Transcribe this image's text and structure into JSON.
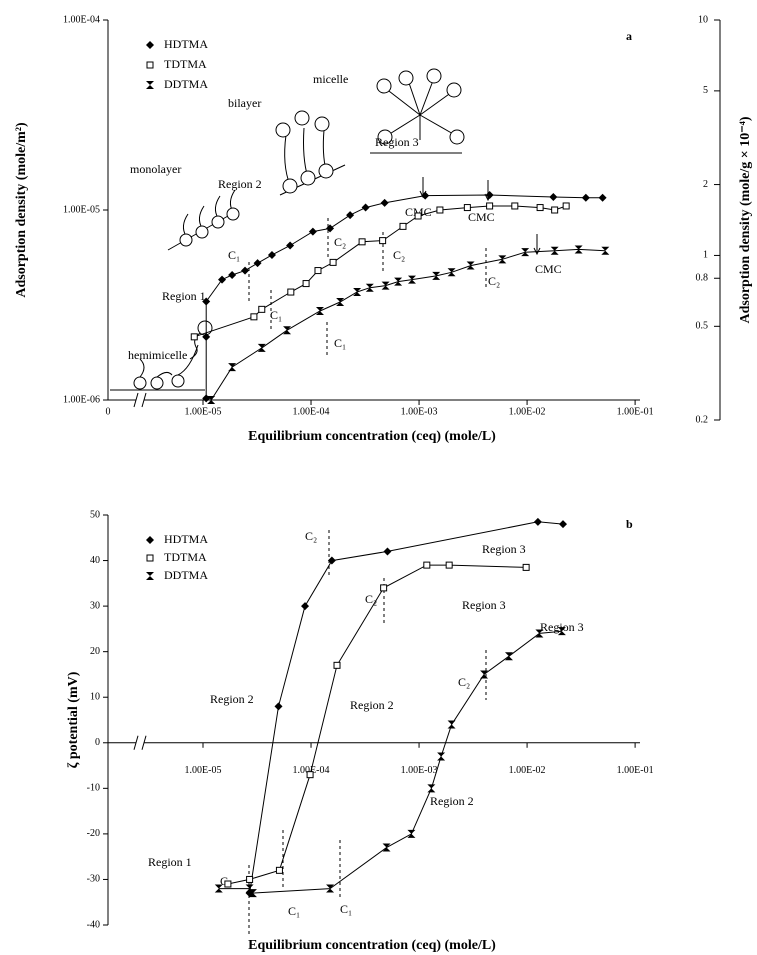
{
  "chart_data": [
    {
      "type": "scatter",
      "panel_label": "a",
      "x_label": "Equilibrium concentration (ceq) (mole/L)",
      "y_label": "Adsorption density (mole/m²)",
      "y2_label": "Adsorption density (mole/g × 10⁻⁴)",
      "x_break_label": "0",
      "log_x": true,
      "log_y": true,
      "log_y2": true,
      "xlim": [
        1.32e-06,
        0.111
      ],
      "xticks": [
        {
          "value": 1e-05,
          "label": "1.00E-05"
        },
        {
          "value": 0.0001,
          "label": "1.00E-04"
        },
        {
          "value": 0.001,
          "label": "1.00E-03"
        },
        {
          "value": 0.01,
          "label": "1.00E-02"
        },
        {
          "value": 0.1,
          "label": "1.00E-01"
        }
      ],
      "ylim": [
        1e-06,
        0.0001
      ],
      "yticks": [
        {
          "value": 1e-06,
          "label": "1.00E-06"
        },
        {
          "value": 1e-05,
          "label": "1.00E-05"
        },
        {
          "value": 0.0001,
          "label": "1.00E-04"
        }
      ],
      "y2lim": [
        0.2,
        10
      ],
      "y2ticks": [
        10,
        5,
        2,
        1,
        0.8,
        0.5,
        0.2
      ],
      "annotations": [
        "monolayer",
        "bilayer",
        "micelle",
        "Region 3",
        "Region 2",
        "Region 1",
        "hemimicelle",
        "C₁",
        "C₂",
        "C₁",
        "C₂",
        "C₁",
        "C₂",
        "CMC",
        "CMC",
        "CMC"
      ],
      "series": [
        {
          "name": "HDTMA",
          "marker": "diamond",
          "color": "#000000",
          "x": [
            1.07e-05,
            1.07e-05,
            1.07e-05,
            1.5e-05,
            1.86e-05,
            2.45e-05,
            3.2e-05,
            4.35e-05,
            6.4e-05,
            0.000104,
            0.00015,
            0.00023,
            0.00032,
            0.00048,
            0.00114,
            0.0045,
            0.0175,
            0.035,
            0.05
          ],
          "values": [
            1.02e-06,
            2.15e-06,
            3.3e-06,
            4.3e-06,
            4.55e-06,
            4.8e-06,
            5.25e-06,
            5.8e-06,
            6.5e-06,
            7.7e-06,
            8e-06,
            9.4e-06,
            1.03e-05,
            1.09e-05,
            1.19e-05,
            1.2e-05,
            1.17e-05,
            1.16e-05,
            1.16e-05
          ]
        },
        {
          "name": "TDTMA",
          "marker": "square",
          "color": "#000000",
          "x": [
            8.3e-06,
            2.96e-05,
            3.5e-05,
            6.5e-05,
            9e-05,
            0.000116,
            0.00016,
            0.000297,
            0.00046,
            0.00071,
            0.00098,
            0.00156,
            0.0028,
            0.0045,
            0.0077,
            0.0132,
            0.018,
            0.023
          ],
          "values": [
            2.15e-06,
            2.74e-06,
            3e-06,
            3.7e-06,
            4.1e-06,
            4.8e-06,
            5.3e-06,
            6.8e-06,
            6.9e-06,
            8.2e-06,
            9.3e-06,
            1e-05,
            1.03e-05,
            1.05e-05,
            1.05e-05,
            1.03e-05,
            1e-05,
            1.05e-05
          ]
        },
        {
          "name": "DDTMA",
          "marker": "bowtie",
          "color": "#000000",
          "x": [
            1.19e-05,
            1.86e-05,
            3.5e-05,
            6e-05,
            0.000121,
            0.000186,
            0.000267,
            0.00035,
            0.00049,
            0.00064,
            0.00086,
            0.00144,
            0.002,
            0.003,
            0.0059,
            0.0096,
            0.018,
            0.03,
            0.053
          ],
          "values": [
            1e-06,
            1.49e-06,
            1.88e-06,
            2.33e-06,
            2.94e-06,
            3.28e-06,
            3.7e-06,
            3.9e-06,
            4e-06,
            4.2e-06,
            4.3e-06,
            4.5e-06,
            4.7e-06,
            5.1e-06,
            5.5e-06,
            6e-06,
            6.1e-06,
            6.2e-06,
            6.1e-06
          ]
        }
      ]
    },
    {
      "type": "scatter",
      "panel_label": "b",
      "x_label": "Equilibrium concentration (ceq) (mole/L)",
      "y_label": "ζ potential (mV)",
      "log_x": true,
      "log_y": false,
      "xlim": [
        1.32e-06,
        0.111
      ],
      "xticks": [
        {
          "value": 1e-05,
          "label": "1.00E-05"
        },
        {
          "value": 0.0001,
          "label": "1.00E-04"
        },
        {
          "value": 0.001,
          "label": "1.00E-03"
        },
        {
          "value": 0.01,
          "label": "1.00E-02"
        },
        {
          "value": 0.1,
          "label": "1.00E-01"
        }
      ],
      "ylim": [
        -40,
        50
      ],
      "yticks": [
        -40,
        -30,
        -20,
        -10,
        0,
        10,
        20,
        30,
        40,
        50
      ],
      "annotations": [
        "C₂",
        "Region 3",
        "C₂",
        "Region 3",
        "Region 3",
        "Region 2",
        "Region 2",
        "C₂",
        "Region 1",
        "C₁",
        "C₁",
        "C₁",
        "Region 2"
      ],
      "series": [
        {
          "name": "HDTMA",
          "marker": "diamond",
          "color": "#000000",
          "x": [
            2.7e-05,
            5e-05,
            8.8e-05,
            0.000156,
            0.00051,
            0.0126,
            0.0215
          ],
          "values": [
            -33,
            8,
            30,
            40,
            42,
            48.5,
            48
          ]
        },
        {
          "name": "TDTMA",
          "marker": "square",
          "color": "#000000",
          "x": [
            1.7e-05,
            2.7e-05,
            5.1e-05,
            9.8e-05,
            0.000174,
            0.00047,
            0.00118,
            0.0019,
            0.0098
          ],
          "values": [
            -31,
            -30,
            -28,
            -7,
            17,
            34,
            39,
            39,
            38.5
          ]
        },
        {
          "name": "DDTMA",
          "marker": "bowtie",
          "color": "#000000",
          "x": [
            1.4e-05,
            2.7e-05,
            2.9e-05,
            0.00015,
            0.0005,
            0.00085,
            0.0013,
            0.0016,
            0.002,
            0.004,
            0.0068,
            0.013,
            0.021
          ],
          "values": [
            -32,
            -32,
            -33,
            -32,
            -23,
            -20,
            -10,
            -3,
            4,
            15,
            19,
            24,
            24.5
          ]
        }
      ]
    }
  ]
}
